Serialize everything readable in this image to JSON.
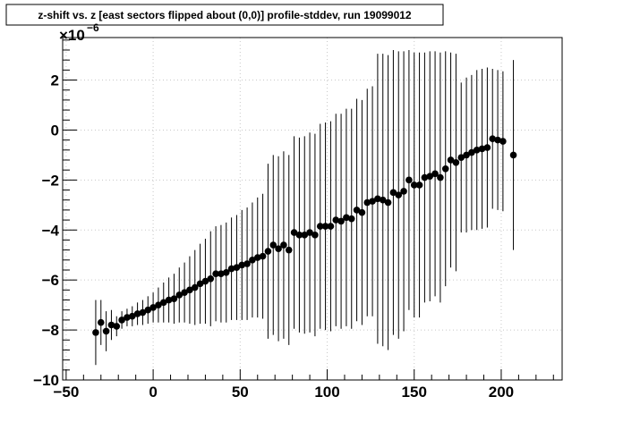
{
  "chart_data": {
    "type": "scatter",
    "title": "z-shift vs. z [east sectors flipped about (0,0)] profile-stddev, run 19099012",
    "xlabel": "",
    "ylabel": "",
    "xlim": [
      -52,
      235
    ],
    "ylim": [
      -10,
      3.7
    ],
    "y_exponent_label": "×10",
    "y_exponent_power": "−6",
    "x_ticks": [
      -50,
      0,
      50,
      100,
      150,
      200
    ],
    "x_tick_labels": [
      "−50",
      "0",
      "50",
      "100",
      "150",
      "200"
    ],
    "y_ticks": [
      -10,
      -8,
      -6,
      -4,
      -2,
      0,
      2
    ],
    "y_tick_labels": [
      "−10",
      "−8",
      "−6",
      "−4",
      "−2",
      "0",
      "2"
    ],
    "grid": true,
    "legend": "none",
    "marker_color": "#000000",
    "series": [
      {
        "x": [
          -33,
          -30,
          -27,
          -24,
          -21,
          -18,
          -15,
          -12,
          -9,
          -6,
          -3,
          0,
          3,
          6,
          9,
          12,
          15,
          18,
          21,
          24,
          27,
          30,
          33,
          36,
          39,
          42,
          45,
          48,
          51,
          54,
          57,
          60,
          63,
          66,
          69,
          72,
          75,
          78,
          81,
          84,
          87,
          90,
          93,
          96,
          99,
          102,
          105,
          108,
          111,
          114,
          117,
          120,
          123,
          126,
          129,
          132,
          135,
          138,
          141,
          144,
          147,
          150,
          153,
          156,
          159,
          162,
          165,
          168,
          171,
          174,
          177,
          180,
          183,
          186,
          189,
          192,
          195,
          198,
          201,
          207
        ],
        "y": [
          -8.1,
          -7.7,
          -8.05,
          -7.8,
          -7.85,
          -7.6,
          -7.5,
          -7.45,
          -7.35,
          -7.3,
          -7.2,
          -7.1,
          -7.0,
          -6.9,
          -6.8,
          -6.75,
          -6.6,
          -6.5,
          -6.4,
          -6.3,
          -6.15,
          -6.05,
          -5.95,
          -5.75,
          -5.75,
          -5.7,
          -5.55,
          -5.5,
          -5.4,
          -5.35,
          -5.2,
          -5.1,
          -5.05,
          -4.85,
          -4.6,
          -4.75,
          -4.6,
          -4.8,
          -4.1,
          -4.2,
          -4.2,
          -4.1,
          -4.2,
          -3.85,
          -3.85,
          -3.85,
          -3.6,
          -3.65,
          -3.5,
          -3.55,
          -3.2,
          -3.3,
          -2.9,
          -2.85,
          -2.75,
          -2.8,
          -2.9,
          -2.5,
          -2.6,
          -2.45,
          -2.0,
          -2.2,
          -2.2,
          -1.9,
          -1.85,
          -1.75,
          -1.9,
          -1.55,
          -1.2,
          -1.3,
          -1.1,
          -1.0,
          -0.9,
          -0.8,
          -0.75,
          -0.7,
          -0.35,
          -0.4,
          -0.45,
          -1.0
        ],
        "err": [
          1.3,
          0.9,
          0.8,
          0.6,
          0.4,
          0.35,
          0.35,
          0.4,
          0.45,
          0.5,
          0.55,
          0.6,
          0.7,
          0.8,
          0.9,
          1.0,
          1.1,
          1.2,
          1.35,
          1.5,
          1.6,
          1.7,
          1.9,
          1.9,
          1.95,
          2.0,
          2.05,
          2.1,
          2.2,
          2.25,
          2.3,
          2.4,
          2.5,
          3.5,
          3.6,
          3.7,
          3.75,
          3.8,
          3.85,
          3.9,
          3.95,
          4.0,
          4.05,
          4.1,
          4.15,
          4.2,
          4.25,
          4.3,
          4.35,
          4.4,
          4.45,
          4.5,
          4.55,
          4.6,
          5.8,
          5.85,
          5.9,
          5.7,
          5.75,
          5.6,
          5.2,
          5.3,
          5.3,
          5.0,
          5.0,
          4.9,
          5.0,
          4.7,
          4.3,
          4.35,
          3.0,
          3.1,
          3.1,
          3.2,
          3.2,
          3.2,
          2.8,
          2.8,
          2.8,
          3.8
        ]
      }
    ]
  }
}
